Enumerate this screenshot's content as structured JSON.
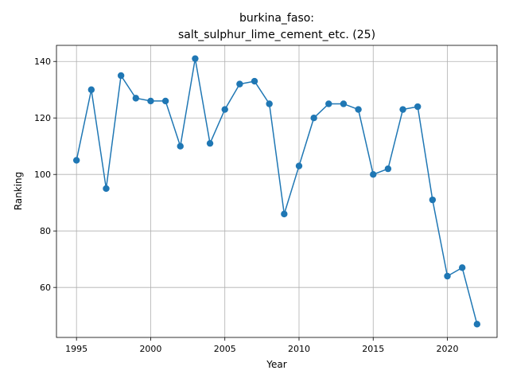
{
  "chart_data": {
    "type": "line",
    "title_line1": "burkina_faso:",
    "title_line2": "salt_sulphur_lime_cement_etc. (25)",
    "xlabel": "Year",
    "ylabel": "Ranking",
    "xlim": [
      1993.65,
      1996.0
    ],
    "ylim": [
      42.3,
      145.7
    ],
    "xticks": [
      1995,
      2000,
      2005,
      2010,
      2015,
      2020
    ],
    "yticks": [
      60,
      80,
      100,
      120,
      140
    ],
    "grid": true,
    "color": "#1f77b4",
    "x": [
      1995,
      1996,
      1997,
      1998,
      1999,
      2000,
      2001,
      2002,
      2003,
      2004,
      2005,
      2006,
      2007,
      2008,
      2009,
      2010,
      2011,
      2012,
      2013,
      2014,
      2015,
      2016,
      2017,
      2018,
      2019,
      2020,
      2021,
      2022
    ],
    "y": [
      105,
      130,
      95,
      135,
      127,
      126,
      126,
      110,
      141,
      111,
      123,
      132,
      133,
      125,
      86,
      103,
      120,
      125,
      125,
      123,
      100,
      102,
      123,
      124,
      91,
      64,
      67,
      47
    ]
  }
}
